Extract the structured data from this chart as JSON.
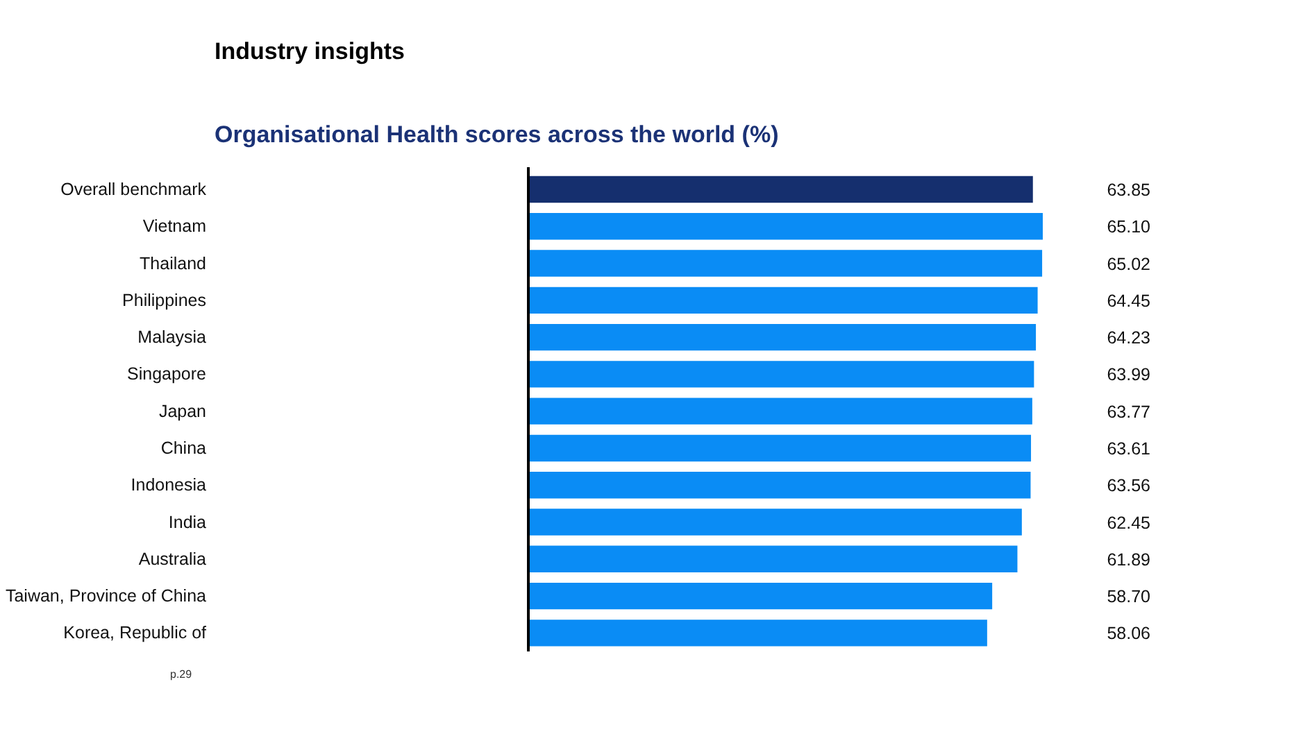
{
  "chart_data": {
    "type": "bar",
    "orientation": "horizontal",
    "title": "Industry insights",
    "subtitle": "Organisational Health scores across the world (%)",
    "categories": [
      "Overall benchmark",
      "Vietnam",
      "Thailand",
      "Philippines",
      "Malaysia",
      "Singapore",
      "Japan",
      "China",
      "Indonesia",
      "India",
      "Australia",
      "Taiwan, Province of China",
      "Korea, Republic of"
    ],
    "values": [
      63.85,
      65.1,
      65.02,
      64.45,
      64.23,
      63.99,
      63.77,
      63.61,
      63.56,
      62.45,
      61.89,
      58.7,
      58.06
    ],
    "value_labels": [
      "63.85",
      "65.10",
      "65.02",
      "64.45",
      "64.23",
      "63.99",
      "63.77",
      "63.61",
      "63.56",
      "62.45",
      "61.89",
      "58.70",
      "58.06"
    ],
    "colors": [
      "#152f6e",
      "#0a8cf5",
      "#0a8cf5",
      "#0a8cf5",
      "#0a8cf5",
      "#0a8cf5",
      "#0a8cf5",
      "#0a8cf5",
      "#0a8cf5",
      "#0a8cf5",
      "#0a8cf5",
      "#0a8cf5",
      "#0a8cf5"
    ],
    "tick_labels": "y",
    "grid": false,
    "annotations": [
      "p.29"
    ]
  }
}
